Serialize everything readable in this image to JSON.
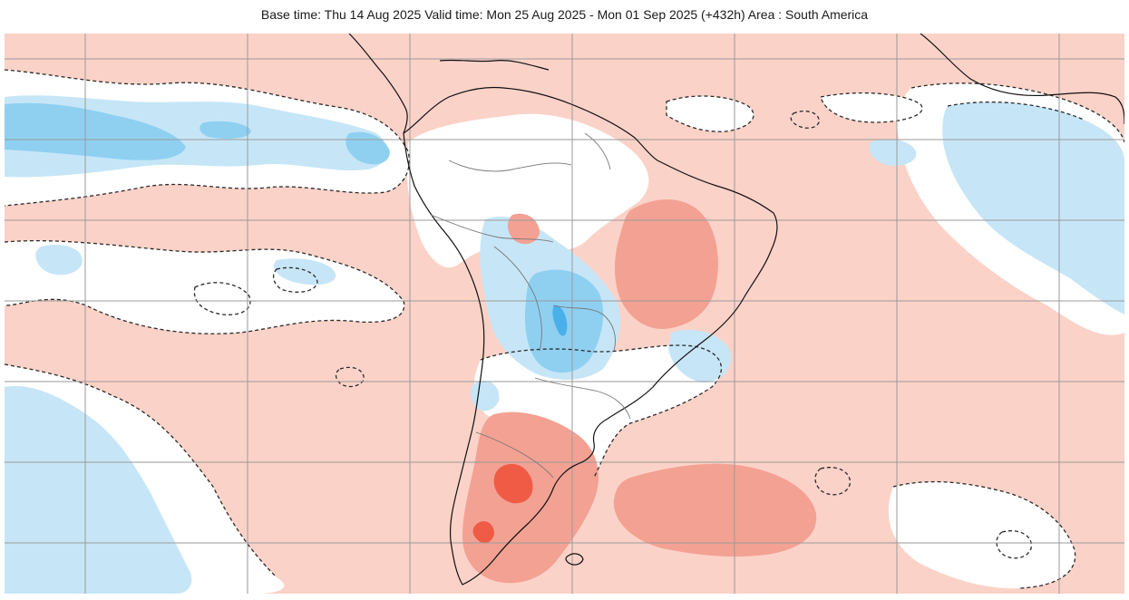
{
  "title": "Base time: Thu 14 Aug 2025 Valid time: Mon 25 Aug 2025 - Mon 01 Sep 2025 (+432h) Area : South America",
  "colors": {
    "background_warm": "#fbd2c8",
    "warm_moderate": "#f3a193",
    "warm_strong": "#ef5b45",
    "cool_light": "#c6e6f7",
    "cool_moderate": "#8fd0f1",
    "cool_strong": "#49b0ea",
    "neutral": "#ffffff",
    "coastline": "#111111",
    "border": "#777777",
    "grid": "#9a9a9a"
  }
}
